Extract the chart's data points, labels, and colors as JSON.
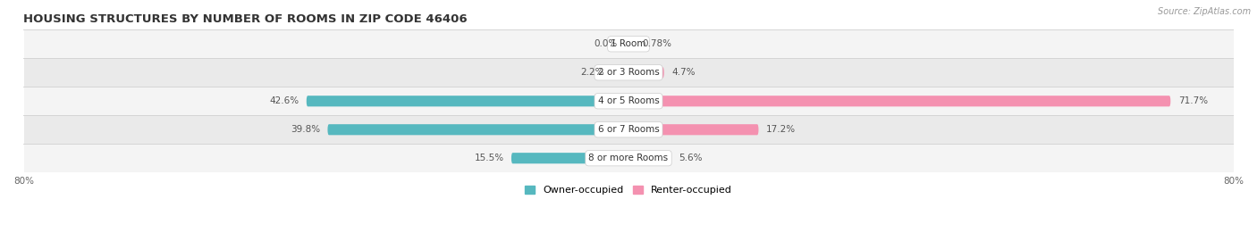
{
  "title": "HOUSING STRUCTURES BY NUMBER OF ROOMS IN ZIP CODE 46406",
  "source": "Source: ZipAtlas.com",
  "categories": [
    "1 Room",
    "2 or 3 Rooms",
    "4 or 5 Rooms",
    "6 or 7 Rooms",
    "8 or more Rooms"
  ],
  "owner_values": [
    0.0,
    2.2,
    42.6,
    39.8,
    15.5
  ],
  "renter_values": [
    0.78,
    4.7,
    71.7,
    17.2,
    5.6
  ],
  "owner_color": "#56b8bf",
  "renter_color": "#f491b0",
  "row_bg_odd": "#f4f4f4",
  "row_bg_even": "#eaeaea",
  "separator_color": "#d0d0d0",
  "axis_limit": 80.0,
  "legend_owner": "Owner-occupied",
  "legend_renter": "Renter-occupied",
  "title_fontsize": 9.5,
  "source_fontsize": 7,
  "label_fontsize": 7.5,
  "category_fontsize": 7.5,
  "figsize": [
    14.06,
    2.7
  ],
  "dpi": 100
}
